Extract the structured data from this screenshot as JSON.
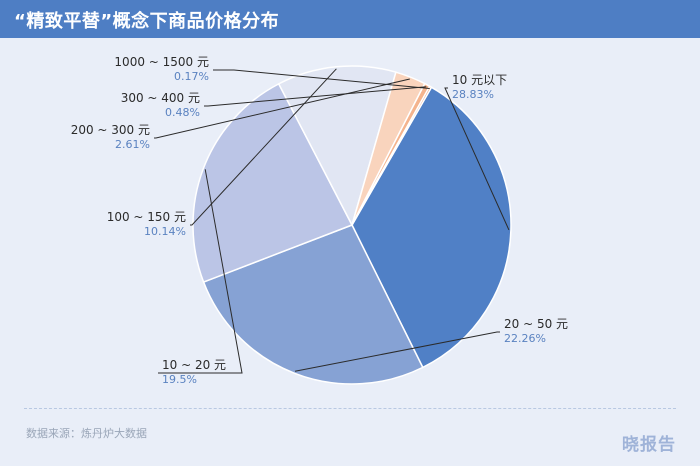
{
  "header": {
    "title": "“精致平替”概念下商品价格分布",
    "bg_color": "#4e7ec4"
  },
  "chart_data": {
    "type": "pie",
    "title": "“精致平替”概念下商品价格分布",
    "categories": [
      "10 元以下",
      "20 ~ 50 元",
      "10 ~ 20 元",
      "100 ~ 150 元",
      "200 ~ 300 元",
      "300 ~ 400 元",
      "1000 ~ 1500 元"
    ],
    "values": [
      28.83,
      22.26,
      19.5,
      10.14,
      2.61,
      0.48,
      0.17
    ],
    "value_labels": [
      "28.83%",
      "22.26%",
      "19.5%",
      "10.14%",
      "2.61%",
      "0.48%",
      "0.17%"
    ],
    "colors": [
      "#5080c6",
      "#86a2d4",
      "#bbc5e6",
      "#e1e6f3",
      "#f9d4bd",
      "#f4b48e",
      "#ec9a6e"
    ],
    "start_angle_deg": 30,
    "direction": "clockwise"
  },
  "footer": {
    "source": "数据来源：炼丹炉大数据",
    "brand": "晓报告"
  }
}
